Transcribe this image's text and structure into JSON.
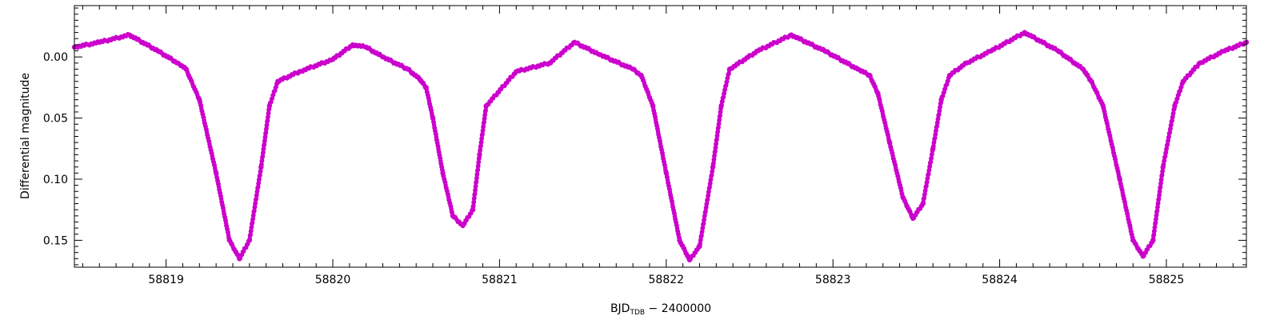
{
  "chart_data": {
    "type": "scatter",
    "title": "",
    "xlabel": {
      "main": "BJD",
      "subscript": "TDB",
      "suffix": " − 2400000"
    },
    "ylabel": "Differential magnitude",
    "xlim": [
      58818.45,
      58825.48
    ],
    "ylim": [
      0.172,
      -0.042
    ],
    "y_inverted": true,
    "x_tick_labels": [
      "58819",
      "58820",
      "58821",
      "58822",
      "58823",
      "58824",
      "58825"
    ],
    "x_ticks": [
      58819,
      58820,
      58821,
      58822,
      58823,
      58824,
      58825
    ],
    "y_tick_labels": [
      "0.00",
      "0.05",
      "0.10",
      "0.15"
    ],
    "y_ticks": [
      0.0,
      0.05,
      0.1,
      0.15
    ],
    "grid": false,
    "series": [
      {
        "color": "#cc00cc",
        "marker": "dot",
        "x": [
          58818.45,
          58818.6,
          58818.78,
          58818.95,
          58819.07,
          58819.12,
          58819.2,
          58819.3,
          58819.38,
          58819.44,
          58819.5,
          58819.57,
          58819.62,
          58819.67,
          58819.8,
          58820.0,
          58820.12,
          58820.2,
          58820.3,
          58820.45,
          58820.52,
          58820.56,
          58820.6,
          58820.66,
          58820.72,
          58820.78,
          58820.84,
          58820.88,
          58820.92,
          58821.1,
          58821.3,
          58821.45,
          58821.6,
          58821.8,
          58821.85,
          58821.92,
          58822.0,
          58822.08,
          58822.14,
          58822.2,
          58822.28,
          58822.33,
          58822.38,
          58822.55,
          58822.75,
          58822.95,
          58823.15,
          58823.22,
          58823.27,
          58823.34,
          58823.42,
          58823.48,
          58823.54,
          58823.6,
          58823.65,
          58823.7,
          58823.8,
          58823.95,
          58824.15,
          58824.35,
          58824.5,
          58824.55,
          58824.62,
          58824.72,
          58824.8,
          58824.86,
          58824.92,
          58824.98,
          58825.05,
          58825.1,
          58825.2,
          58825.35,
          58825.48
        ],
        "y": [
          -0.008,
          -0.012,
          -0.018,
          -0.005,
          0.005,
          0.01,
          0.035,
          0.095,
          0.15,
          0.165,
          0.15,
          0.09,
          0.04,
          0.02,
          0.012,
          0.002,
          -0.01,
          -0.008,
          0.0,
          0.01,
          0.018,
          0.025,
          0.05,
          0.095,
          0.13,
          0.138,
          0.125,
          0.08,
          0.04,
          0.012,
          0.005,
          -0.012,
          -0.002,
          0.01,
          0.015,
          0.04,
          0.095,
          0.15,
          0.166,
          0.155,
          0.09,
          0.04,
          0.01,
          -0.005,
          -0.018,
          -0.005,
          0.01,
          0.015,
          0.03,
          0.07,
          0.115,
          0.132,
          0.12,
          0.075,
          0.035,
          0.015,
          0.005,
          -0.005,
          -0.02,
          -0.005,
          0.01,
          0.02,
          0.04,
          0.1,
          0.15,
          0.163,
          0.15,
          0.09,
          0.04,
          0.02,
          0.005,
          -0.005,
          -0.012
        ]
      }
    ]
  }
}
